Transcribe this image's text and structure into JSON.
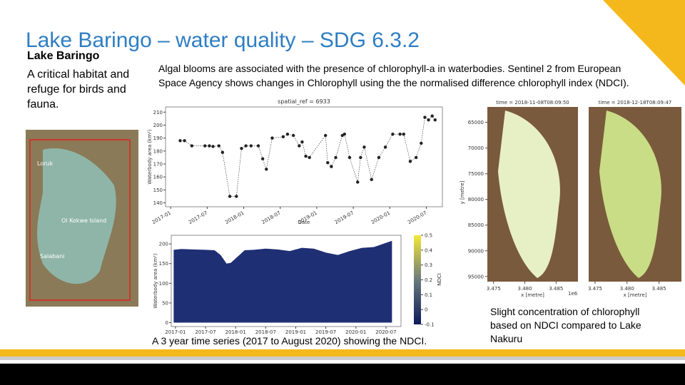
{
  "header": {
    "title": "Lake Baringo – water quality – SDG 6.3.2"
  },
  "left": {
    "heading": "Lake Baringo",
    "body": "A critical habitat and refuge for birds and fauna.",
    "map_labels": [
      "Loruk",
      "Ol Kokwe Island",
      "Salabani"
    ]
  },
  "intro": "Algal blooms are associated with the presence of chlorophyll-a in waterbodies. Sentinel 2 from European Space Agency shows changes in Chlorophyll using the the normalised difference chlorophyll index (NDCI).",
  "line_chart": {
    "type": "line",
    "title": "spatial_ref = 6933",
    "x_label": "Date",
    "y_label": "Waterbody area (km²)",
    "x": [
      2017.13,
      2017.19,
      2017.29,
      2017.47,
      2017.53,
      2017.58,
      2017.66,
      2017.71,
      2017.81,
      2017.9,
      2017.97,
      2018.03,
      2018.1,
      2018.2,
      2018.26,
      2018.31,
      2018.39,
      2018.54,
      2018.6,
      2018.68,
      2018.76,
      2018.8,
      2018.85,
      2018.9,
      2019.12,
      2019.15,
      2019.2,
      2019.26,
      2019.35,
      2019.38,
      2019.45,
      2019.56,
      2019.6,
      2019.65,
      2019.75,
      2019.85,
      2019.94,
      2020.04,
      2020.14,
      2020.19,
      2020.28,
      2020.36,
      2020.43,
      2020.48,
      2020.53,
      2020.58,
      2020.62
    ],
    "values": [
      188,
      188,
      184,
      184,
      184,
      183.5,
      184,
      179,
      145,
      145,
      182,
      184,
      184,
      184,
      174,
      166,
      190,
      191,
      193,
      192,
      184,
      187,
      176,
      175,
      192,
      171,
      168,
      175,
      192,
      193,
      175,
      156,
      175,
      183,
      158,
      175,
      183,
      193,
      193,
      193,
      172,
      175,
      186,
      206,
      204,
      207,
      204
    ],
    "color": "#222222",
    "xlim": [
      2016.93,
      2020.72
    ],
    "ylim": [
      137,
      214
    ],
    "yticks": [
      140,
      150,
      160,
      170,
      180,
      190,
      200,
      210
    ],
    "xticks": [
      {
        "value": 2017,
        "label": "2017-01"
      },
      {
        "value": 2017.5,
        "label": "2017-07"
      },
      {
        "value": 2018,
        "label": "2018-01"
      },
      {
        "value": 2018.5,
        "label": "2018-07"
      },
      {
        "value": 2019,
        "label": "2019-01"
      },
      {
        "value": 2019.5,
        "label": "2019-07"
      },
      {
        "value": 2020,
        "label": "2020-01"
      },
      {
        "value": 2020.5,
        "label": "2020-07"
      }
    ]
  },
  "area_chart": {
    "type": "area",
    "y_label": "Waterbody area (km²)",
    "colorbar_label": "NDCI",
    "x": [
      2016.97,
      2017.1,
      2017.3,
      2017.5,
      2017.65,
      2017.75,
      2017.85,
      2017.92,
      2018.05,
      2018.15,
      2018.3,
      2018.5,
      2018.7,
      2018.9,
      2019.1,
      2019.3,
      2019.5,
      2019.7,
      2019.9,
      2020.1,
      2020.3,
      2020.45,
      2020.6
    ],
    "values": [
      185,
      187,
      186,
      185,
      184,
      172,
      150,
      152,
      170,
      184,
      185,
      188,
      186,
      182,
      190,
      188,
      178,
      172,
      182,
      190,
      192,
      200,
      208
    ],
    "color": "#1f2f74",
    "xlim": [
      2016.93,
      2020.75
    ],
    "ylim": [
      -10,
      222
    ],
    "yticks": [
      0,
      50,
      100,
      150,
      200
    ],
    "xticks": [
      {
        "value": 2017,
        "label": "2017-01"
      },
      {
        "value": 2017.5,
        "label": "2017-07"
      },
      {
        "value": 2018,
        "label": "2018-01"
      },
      {
        "value": 2018.5,
        "label": "2018-07"
      },
      {
        "value": 2019,
        "label": "2019-01"
      },
      {
        "value": 2019.5,
        "label": "2019-07"
      },
      {
        "value": 2020,
        "label": "2020-01"
      },
      {
        "value": 2020.5,
        "label": "2020-07"
      }
    ],
    "colorbar_lim": [
      -0.1,
      0.5
    ],
    "colorbar_ticks": [
      -0.1,
      0,
      0.1,
      0.2,
      0.3,
      0.4,
      0.5
    ]
  },
  "area_caption": "A 3 year time series (2017 to August 2020) showing the NDCI.",
  "satellite": {
    "titles": [
      "time = 2018-11-08T08:09:50",
      "time = 2018-12-18T08:09:47"
    ],
    "y_label": "y [metre]",
    "x_label": "x [metre]",
    "x_offset": "1e6",
    "ylim": [
      96000,
      62000
    ],
    "yticks": [
      95000,
      90000,
      85000,
      80000,
      75000,
      70000,
      65000
    ],
    "xlim": [
      3.474,
      3.4885
    ],
    "xticks": [
      {
        "value": 3.475,
        "label": "3.475"
      },
      {
        "value": 3.48,
        "label": "3.480"
      },
      {
        "value": 3.485,
        "label": "3.485"
      }
    ]
  },
  "sat_caption": "Slight concentration of chlorophyll based on NDCI compared to Lake Nakuru"
}
